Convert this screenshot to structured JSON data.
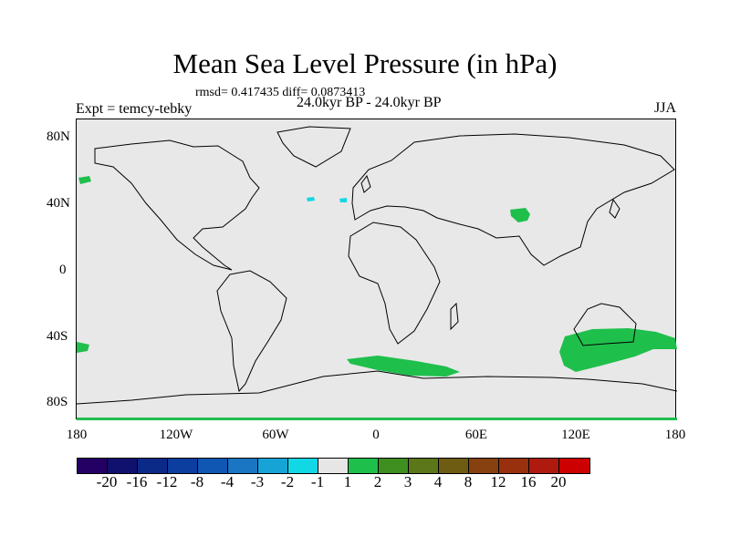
{
  "title": "Mean Sea Level Pressure (in hPa)",
  "stats": "rmsd= 0.417435 diff= 0.0873413",
  "experiment": "Expt = temcy-tebky",
  "period": "24.0kyr BP - 24.0kyr BP",
  "season": "JJA",
  "lat_labels": [
    "80N",
    "40N",
    "0",
    "40S",
    "80S"
  ],
  "lon_labels": [
    "180",
    "120W",
    "60W",
    "0",
    "60E",
    "120E",
    "180"
  ],
  "colorbar": {
    "colors": [
      "#240065",
      "#10106e",
      "#0b2a88",
      "#0b3e9e",
      "#0f57b3",
      "#1a75c2",
      "#16a4d6",
      "#12d8e6",
      "#e6e6e6",
      "#1fbf4c",
      "#3f8e20",
      "#5c761a",
      "#6e5c12",
      "#874010",
      "#98300e",
      "#ae1a0e",
      "#cc0000"
    ],
    "labels": [
      "-20",
      "-16",
      "-12",
      "-8",
      "-4",
      "-3",
      "-2",
      "-1",
      "1",
      "2",
      "3",
      "4",
      "8",
      "12",
      "16",
      "20"
    ]
  },
  "colors": {
    "land_outline": "#000000",
    "background": "#e8e8e8",
    "positive_fill": "#1fbf4c",
    "negative_fill": "#12d8e6"
  }
}
